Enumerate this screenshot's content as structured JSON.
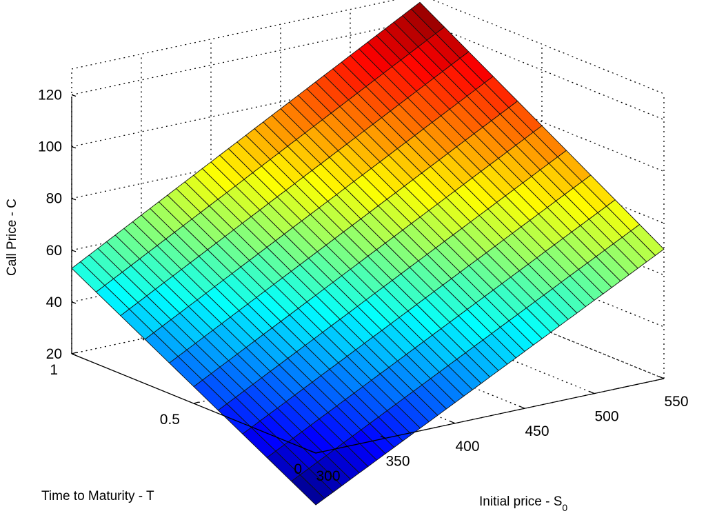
{
  "chart_data": {
    "type": "surface",
    "title": "",
    "xlabel": "Time to Maturity - T",
    "ylabel_main": "Initial price - S",
    "ylabel_sub": "0",
    "zlabel": "Call Price - C",
    "x_ticks": [
      "0",
      "0.5",
      "1"
    ],
    "y_ticks": [
      "300",
      "350",
      "400",
      "450",
      "500",
      "550"
    ],
    "z_ticks": [
      "20",
      "40",
      "60",
      "80",
      "100",
      "120"
    ],
    "x_range": [
      0,
      1
    ],
    "y_range": [
      300,
      550
    ],
    "z_range": [
      20,
      130
    ],
    "grid": true,
    "colormap": "jet",
    "color_range": [
      0,
      127
    ],
    "T_values": [
      0,
      0.1,
      0.2,
      0.3,
      0.4,
      0.5,
      0.6,
      0.7,
      0.8,
      0.9,
      1.0
    ],
    "S0_values": [
      300,
      325,
      350,
      375,
      400,
      425,
      450,
      475,
      500,
      525,
      550
    ],
    "corner_values": [
      {
        "T": 0,
        "S0": 300,
        "C": 0
      },
      {
        "T": 1,
        "S0": 300,
        "C": 53
      },
      {
        "T": 0,
        "S0": 550,
        "C": 70
      },
      {
        "T": 1,
        "S0": 550,
        "C": 127
      }
    ]
  }
}
